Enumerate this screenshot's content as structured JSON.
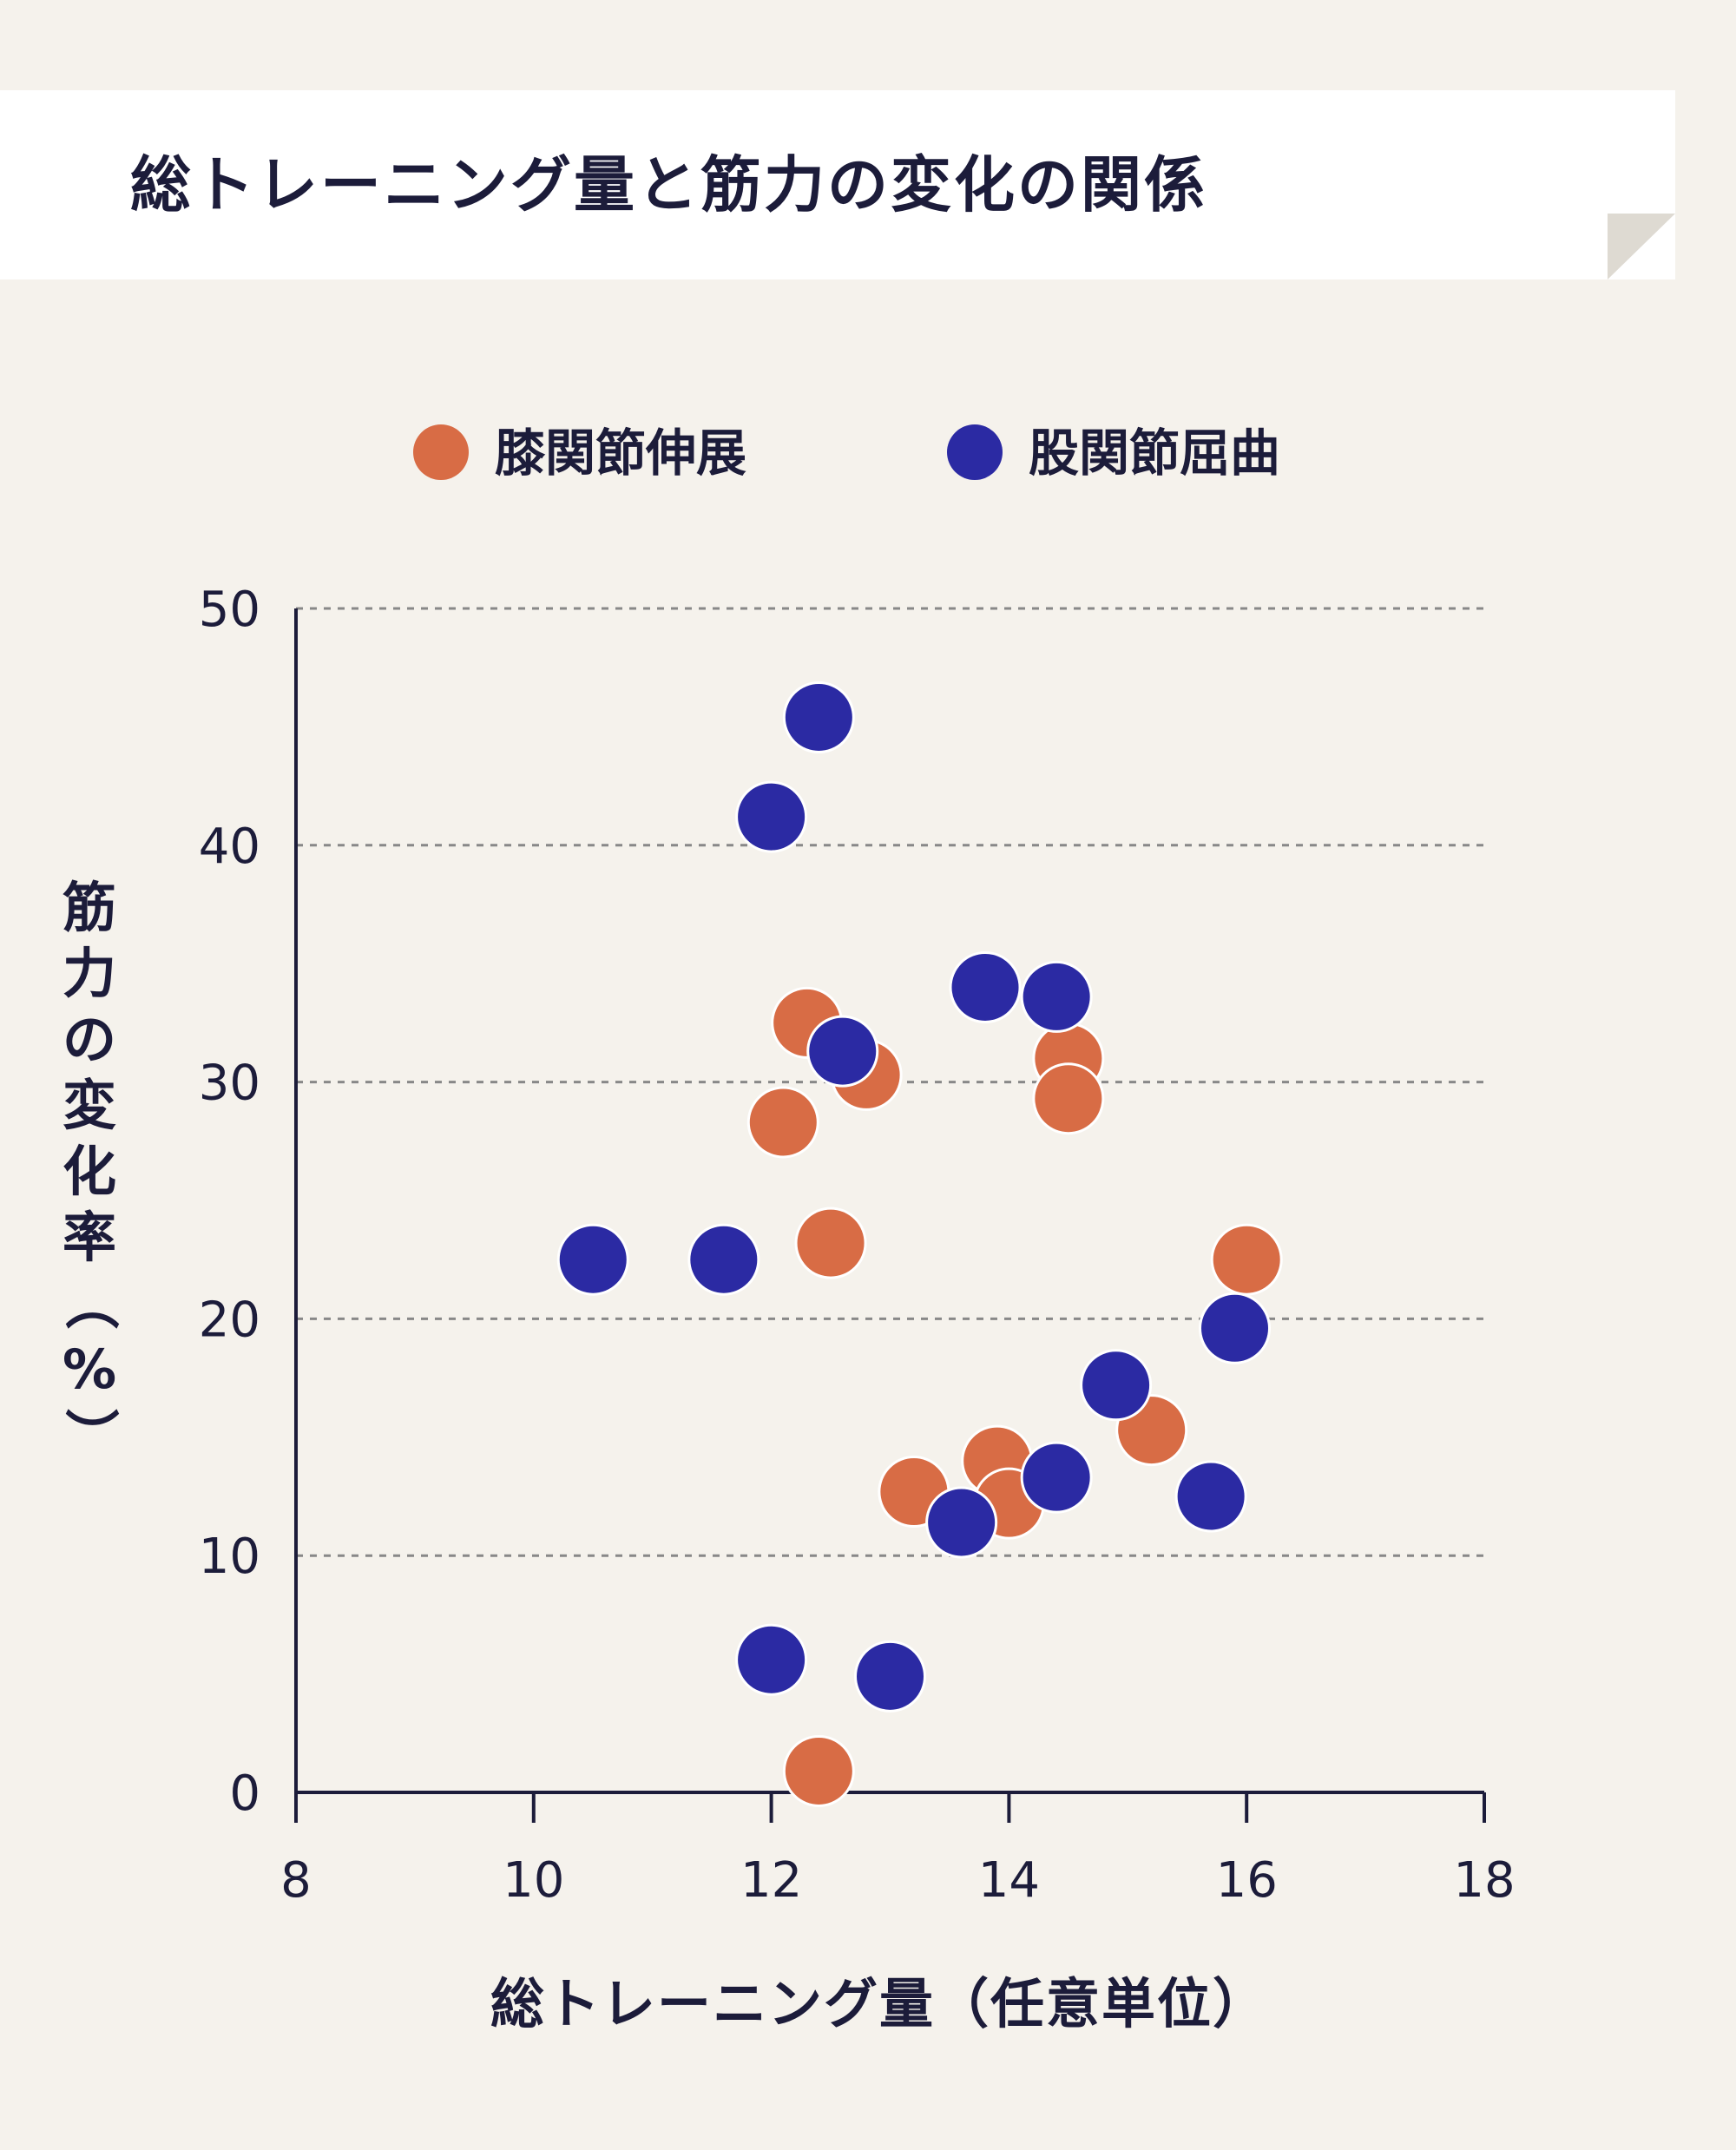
{
  "title": "総トレーニング量と筋力の変化の関係",
  "colors": {
    "background": "#f5f2ec",
    "title_band": "#ffffff",
    "text": "#1c1c3a",
    "knee_extension": "#d86c45",
    "hip_flexion": "#2b2aa3",
    "grid": "#888888"
  },
  "chart_data": {
    "type": "scatter",
    "title": "総トレーニング量と筋力の変化の関係",
    "xlabel": "総トレーニング量（任意単位）",
    "ylabel": "筋力の変化率（%）",
    "xlim": [
      8,
      18
    ],
    "ylim": [
      0,
      50
    ],
    "xticks": [
      "8",
      "10",
      "12",
      "14",
      "16",
      "18"
    ],
    "yticks": [
      "0",
      "10",
      "20",
      "30",
      "40",
      "50"
    ],
    "grid": "horizontal dashed",
    "legend_position": "top",
    "series": [
      {
        "name": "膝関節伸展",
        "color": "#d86c45",
        "points": [
          {
            "x": 12.3,
            "y": 32.5
          },
          {
            "x": 12.8,
            "y": 30.3
          },
          {
            "x": 12.1,
            "y": 28.3
          },
          {
            "x": 12.5,
            "y": 23.2
          },
          {
            "x": 14.5,
            "y": 31.0
          },
          {
            "x": 14.5,
            "y": 29.3
          },
          {
            "x": 16.0,
            "y": 22.5
          },
          {
            "x": 15.2,
            "y": 15.3
          },
          {
            "x": 13.9,
            "y": 14.0
          },
          {
            "x": 14.0,
            "y": 12.2
          },
          {
            "x": 13.2,
            "y": 12.7
          },
          {
            "x": 12.4,
            "y": 0.9
          }
        ]
      },
      {
        "name": "股関節屈曲",
        "color": "#2b2aa3",
        "points": [
          {
            "x": 12.4,
            "y": 45.4
          },
          {
            "x": 12.0,
            "y": 41.2
          },
          {
            "x": 12.6,
            "y": 31.3
          },
          {
            "x": 13.8,
            "y": 34.0
          },
          {
            "x": 14.4,
            "y": 33.6
          },
          {
            "x": 10.5,
            "y": 22.5
          },
          {
            "x": 11.6,
            "y": 22.5
          },
          {
            "x": 15.9,
            "y": 19.6
          },
          {
            "x": 14.9,
            "y": 17.2
          },
          {
            "x": 15.7,
            "y": 12.5
          },
          {
            "x": 14.4,
            "y": 13.3
          },
          {
            "x": 13.6,
            "y": 11.4
          },
          {
            "x": 12.0,
            "y": 5.6
          },
          {
            "x": 13.0,
            "y": 4.9
          }
        ]
      }
    ]
  }
}
